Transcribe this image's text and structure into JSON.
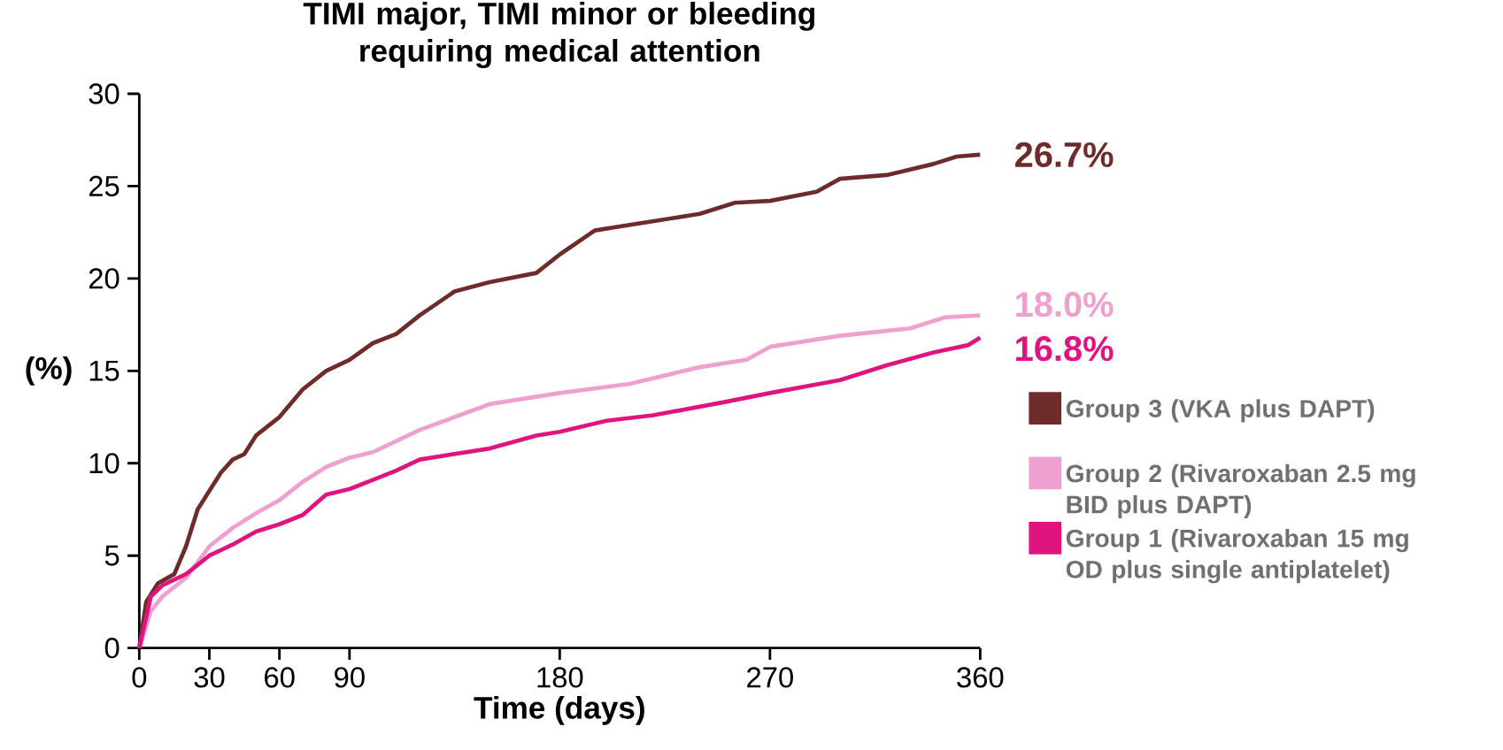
{
  "chart_data": {
    "type": "line",
    "title": "TIMI major, TIMI minor or bleeding requiring medical attention",
    "xlabel": "Time (days)",
    "ylabel": "(%)",
    "xlim": [
      0,
      360
    ],
    "xticks": [
      0,
      30,
      60,
      90,
      180,
      270,
      360
    ],
    "ylim": [
      0,
      30
    ],
    "yticks": [
      0,
      5,
      10,
      15,
      20,
      25,
      30
    ],
    "grid": false,
    "legend": "right",
    "marker": "none",
    "line_style": "solid",
    "series": [
      {
        "name": "Group 3 (VKA plus DAPT)",
        "color": "#6e2b2b",
        "x": [
          0,
          3,
          8,
          15,
          20,
          25,
          30,
          35,
          40,
          45,
          50,
          60,
          70,
          80,
          90,
          100,
          110,
          120,
          135,
          150,
          170,
          180,
          195,
          210,
          240,
          255,
          270,
          290,
          300,
          320,
          340,
          350,
          360
        ],
        "values": [
          0,
          2.5,
          3.5,
          4.0,
          5.5,
          7.5,
          8.5,
          9.5,
          10.2,
          10.5,
          11.5,
          12.5,
          14.0,
          15.0,
          15.6,
          16.5,
          17.0,
          18.0,
          19.3,
          19.8,
          20.3,
          21.3,
          22.6,
          22.9,
          23.5,
          24.1,
          24.2,
          24.7,
          25.4,
          25.6,
          26.2,
          26.6,
          26.7
        ],
        "value_labels": [
          null,
          null,
          null,
          null,
          null,
          null,
          null,
          null,
          null,
          null,
          null,
          null,
          null,
          null,
          null,
          null,
          null,
          null,
          null,
          null,
          null,
          null,
          null,
          null,
          null,
          null,
          null,
          null,
          null,
          null,
          null,
          null,
          "26.7%"
        ]
      },
      {
        "name": "Group 2 (Rivaroxaban 2.5 mg BID plus DAPT)",
        "color": "#eea0cf",
        "x": [
          0,
          5,
          10,
          20,
          30,
          40,
          50,
          60,
          70,
          80,
          90,
          100,
          120,
          135,
          150,
          180,
          210,
          240,
          260,
          270,
          300,
          330,
          345,
          360
        ],
        "values": [
          0,
          2.0,
          2.8,
          3.8,
          5.5,
          6.5,
          7.3,
          8.0,
          9.0,
          9.8,
          10.3,
          10.6,
          11.8,
          12.5,
          13.2,
          13.8,
          14.3,
          15.2,
          15.6,
          16.3,
          16.9,
          17.3,
          17.9,
          18.0
        ],
        "value_labels": [
          null,
          null,
          null,
          null,
          null,
          null,
          null,
          null,
          null,
          null,
          null,
          null,
          null,
          null,
          null,
          null,
          null,
          null,
          null,
          null,
          null,
          null,
          null,
          "18.0%"
        ]
      },
      {
        "name": "Group 1 (Rivaroxaban 15 mg OD plus single antiplatelet)",
        "color": "#e0147f",
        "x": [
          0,
          5,
          10,
          20,
          30,
          40,
          50,
          60,
          70,
          80,
          90,
          100,
          110,
          120,
          150,
          170,
          180,
          200,
          220,
          250,
          270,
          300,
          320,
          340,
          355,
          360
        ],
        "values": [
          0,
          2.8,
          3.4,
          4.0,
          5.0,
          5.6,
          6.3,
          6.7,
          7.2,
          8.3,
          8.6,
          9.1,
          9.6,
          10.2,
          10.8,
          11.5,
          11.7,
          12.3,
          12.6,
          13.3,
          13.8,
          14.5,
          15.3,
          16.0,
          16.4,
          16.8
        ],
        "value_labels": [
          null,
          null,
          null,
          null,
          null,
          null,
          null,
          null,
          null,
          null,
          null,
          null,
          null,
          null,
          null,
          null,
          null,
          null,
          null,
          null,
          null,
          null,
          null,
          null,
          null,
          "16.8%"
        ]
      }
    ]
  }
}
